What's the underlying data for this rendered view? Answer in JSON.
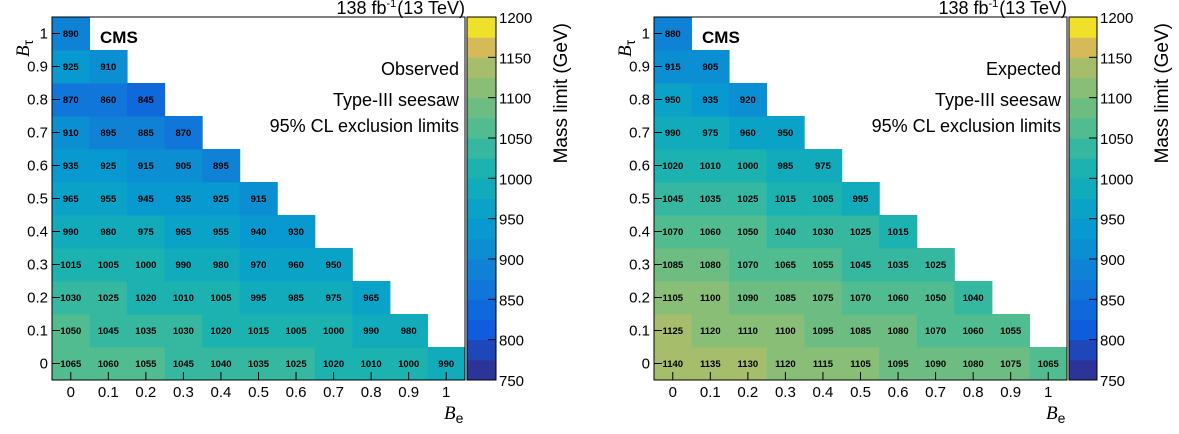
{
  "chart_data": [
    {
      "type": "heatmap",
      "panel_label": "Observed",
      "experiment": "CMS",
      "lumi": {
        "value": "138",
        "unit": "fb",
        "exponent": "-1",
        "energy": "(13 TeV)"
      },
      "annotations": [
        "Observed",
        "Type-III seesaw",
        "95% CL exclusion limits"
      ],
      "xlabel": {
        "symbol": "B",
        "sub": "e"
      },
      "ylabel": {
        "symbol": "B",
        "sub": "τ"
      },
      "x_ticks": [
        "0",
        "0.1",
        "0.2",
        "0.3",
        "0.4",
        "0.5",
        "0.6",
        "0.7",
        "0.8",
        "0.9",
        "1"
      ],
      "y_ticks": [
        "0",
        "0.1",
        "0.2",
        "0.3",
        "0.4",
        "0.5",
        "0.6",
        "0.7",
        "0.8",
        "0.9",
        "1"
      ],
      "colorbar": {
        "label": "Mass limit (GeV)",
        "range": [
          750,
          1200
        ],
        "ticks": [
          "750",
          "800",
          "850",
          "900",
          "950",
          "1000",
          "1050",
          "1100",
          "1150",
          "1200"
        ],
        "palette": "kBird"
      },
      "rows": [
        {
          "y": "0",
          "values": [
            1065,
            1060,
            1055,
            1045,
            1040,
            1035,
            1025,
            1020,
            1010,
            1000,
            990
          ]
        },
        {
          "y": "0.1",
          "values": [
            1050,
            1045,
            1035,
            1030,
            1020,
            1015,
            1005,
            1000,
            990,
            980
          ]
        },
        {
          "y": "0.2",
          "values": [
            1030,
            1025,
            1020,
            1010,
            1005,
            995,
            985,
            975,
            965
          ]
        },
        {
          "y": "0.3",
          "values": [
            1015,
            1005,
            1000,
            990,
            980,
            970,
            960,
            950
          ]
        },
        {
          "y": "0.4",
          "values": [
            990,
            980,
            975,
            965,
            955,
            940,
            930
          ]
        },
        {
          "y": "0.5",
          "values": [
            965,
            955,
            945,
            935,
            925,
            915
          ]
        },
        {
          "y": "0.6",
          "values": [
            935,
            925,
            915,
            905,
            895
          ]
        },
        {
          "y": "0.7",
          "values": [
            910,
            895,
            885,
            870
          ]
        },
        {
          "y": "0.8",
          "values": [
            870,
            860,
            845
          ]
        },
        {
          "y": "0.9",
          "values": [
            925,
            910
          ]
        },
        {
          "y": "1",
          "values": [
            890
          ]
        }
      ]
    },
    {
      "type": "heatmap",
      "panel_label": "Expected",
      "experiment": "CMS",
      "lumi": {
        "value": "138",
        "unit": "fb",
        "exponent": "-1",
        "energy": "(13 TeV)"
      },
      "annotations": [
        "Expected",
        "Type-III seesaw",
        "95% CL exclusion limits"
      ],
      "xlabel": {
        "symbol": "B",
        "sub": "e"
      },
      "ylabel": {
        "symbol": "B",
        "sub": "τ"
      },
      "x_ticks": [
        "0",
        "0.1",
        "0.2",
        "0.3",
        "0.4",
        "0.5",
        "0.6",
        "0.7",
        "0.8",
        "0.9",
        "1"
      ],
      "y_ticks": [
        "0",
        "0.1",
        "0.2",
        "0.3",
        "0.4",
        "0.5",
        "0.6",
        "0.7",
        "0.8",
        "0.9",
        "1"
      ],
      "colorbar": {
        "label": "Mass limit (GeV)",
        "range": [
          750,
          1200
        ],
        "ticks": [
          "750",
          "800",
          "850",
          "900",
          "950",
          "1000",
          "1050",
          "1100",
          "1150",
          "1200"
        ],
        "palette": "kBird"
      },
      "rows": [
        {
          "y": "0",
          "values": [
            1140,
            1135,
            1130,
            1120,
            1115,
            1105,
            1095,
            1090,
            1080,
            1075,
            1065
          ]
        },
        {
          "y": "0.1",
          "values": [
            1125,
            1120,
            1110,
            1100,
            1095,
            1085,
            1080,
            1070,
            1060,
            1055
          ]
        },
        {
          "y": "0.2",
          "values": [
            1105,
            1100,
            1090,
            1085,
            1075,
            1070,
            1060,
            1050,
            1040
          ]
        },
        {
          "y": "0.3",
          "values": [
            1085,
            1080,
            1070,
            1065,
            1055,
            1045,
            1035,
            1025
          ]
        },
        {
          "y": "0.4",
          "values": [
            1070,
            1060,
            1050,
            1040,
            1030,
            1025,
            1015
          ]
        },
        {
          "y": "0.5",
          "values": [
            1045,
            1035,
            1025,
            1015,
            1005,
            995
          ]
        },
        {
          "y": "0.6",
          "values": [
            1020,
            1010,
            1000,
            985,
            975
          ]
        },
        {
          "y": "0.7",
          "values": [
            990,
            975,
            960,
            950
          ]
        },
        {
          "y": "0.8",
          "values": [
            950,
            935,
            920
          ]
        },
        {
          "y": "0.9",
          "values": [
            915,
            905
          ]
        },
        {
          "y": "1",
          "values": [
            880
          ]
        }
      ]
    }
  ]
}
